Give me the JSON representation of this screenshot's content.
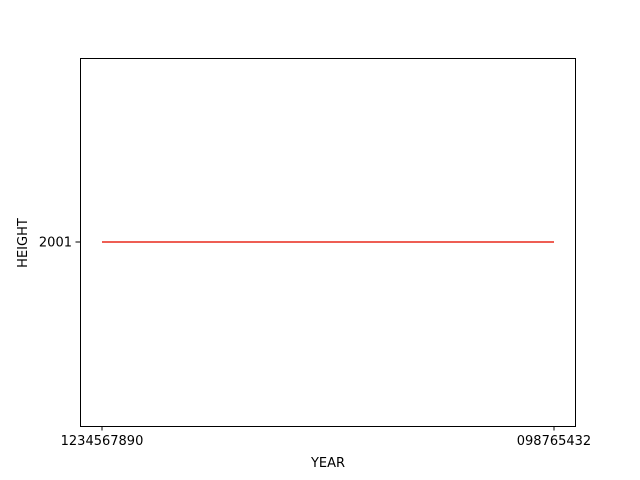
{
  "chart_data": {
    "type": "line",
    "title": "",
    "xlabel": "YEAR",
    "ylabel": "HEIGHT",
    "categories": [
      "1234567890",
      "098765432"
    ],
    "series": [
      {
        "values": [
          2001,
          2001
        ],
        "color": "#e8291c"
      }
    ],
    "y_ticks": [
      "2001"
    ],
    "ylim": [
      2000.945,
      2001.055
    ],
    "grid": false,
    "legend": "none"
  }
}
